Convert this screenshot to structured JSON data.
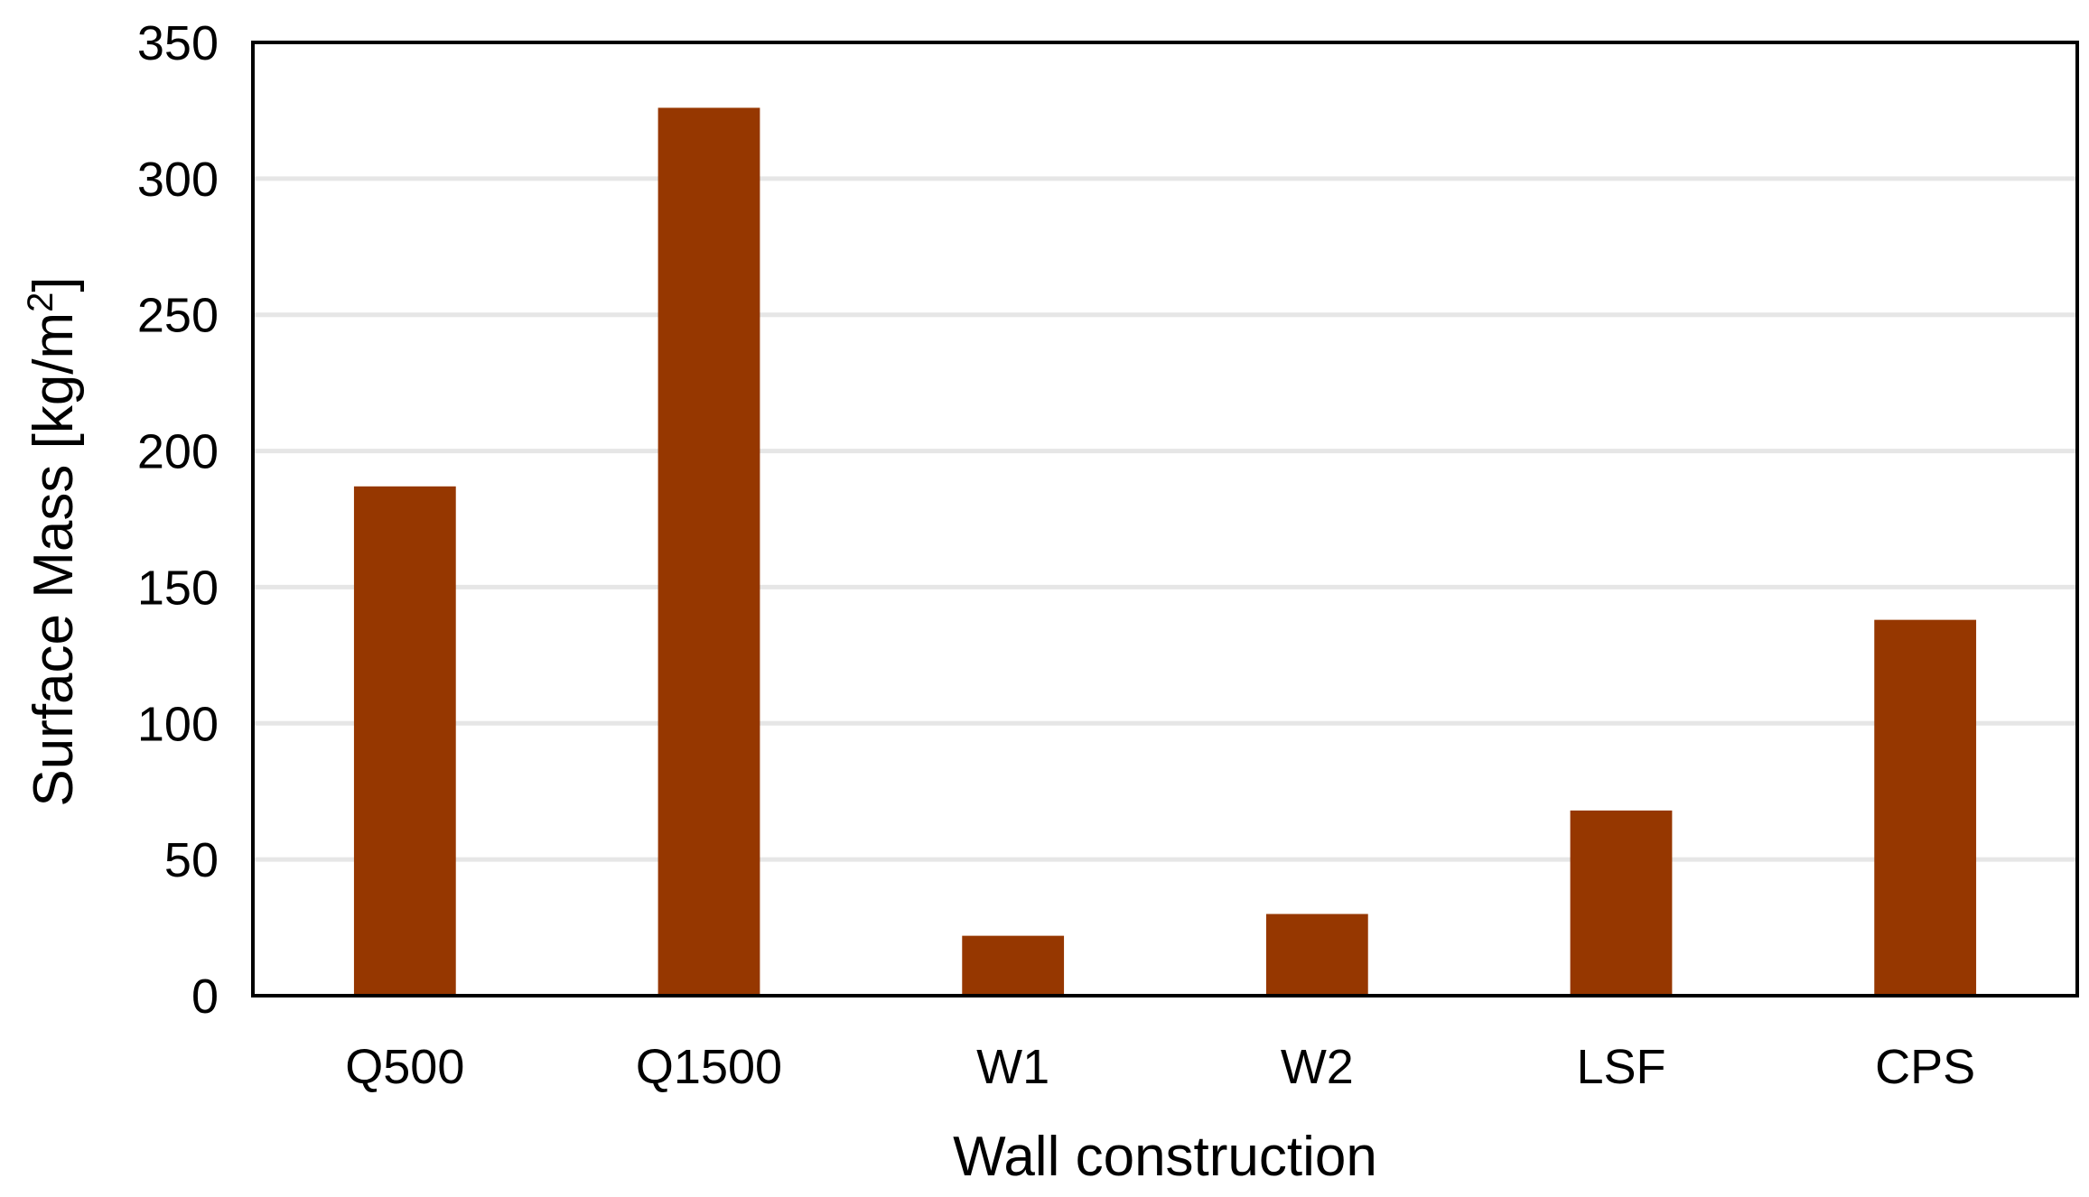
{
  "chart_data": {
    "type": "bar",
    "title": "",
    "xlabel": "Wall construction",
    "ylabel": "Surface Mass [kg/m",
    "ylabel_superscript": "2",
    "ylabel_suffix": "]",
    "categories": [
      "Q500",
      "Q1500",
      "W1",
      "W2",
      "LSF",
      "CPS"
    ],
    "values": [
      187,
      326,
      22,
      30,
      68,
      138
    ],
    "ylim": [
      0,
      350
    ],
    "yticks": [
      0,
      50,
      100,
      150,
      200,
      250,
      300,
      350
    ],
    "ytick_labels": [
      "0",
      "50",
      "100",
      "150",
      "200",
      "250",
      "300",
      "350"
    ],
    "grid": true,
    "legend": "none",
    "bar_color": "#963700",
    "grid_color": "#e6e6e6",
    "axis_color": "#000000"
  }
}
